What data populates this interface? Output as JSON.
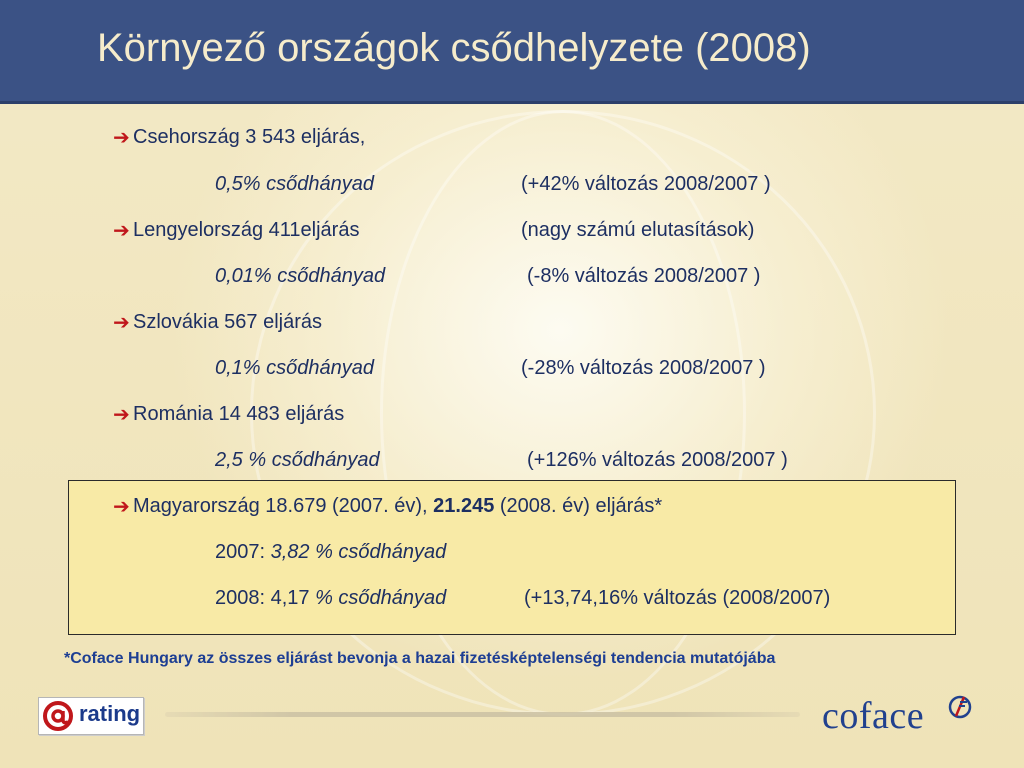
{
  "title": "Környező országok csődhelyzete (2008)",
  "items": [
    {
      "line1": "Csehország 3 543 eljárás,",
      "rate": "0,5% csődhányad",
      "change": "(+42% változás 2008/2007 )"
    },
    {
      "line1": "Lengyelország 411eljárás",
      "line1_note": "(nagy számú elutasítások)",
      "rate": "0,01% csődhányad",
      "change": "(-8% változás 2008/2007 )"
    },
    {
      "line1": "Szlovákia 567 eljárás",
      "rate": "0,1% csődhányad",
      "change": "(-28% változás 2008/2007 )"
    },
    {
      "line1": "Románia 14 483 eljárás",
      "rate": "2,5 % csődhányad",
      "change": "(+126% változás 2008/2007 )"
    }
  ],
  "hungary": {
    "line1_pre": "Magyarország 18.679 (2007. év), ",
    "line1_bold": "21.245",
    "line1_post": " (2008. év) eljárás*",
    "y2007_label": "2007: ",
    "y2007_rate": "3,82 % csődhányad",
    "y2008_label": "2008: 4,17 ",
    "y2008_rate": "% csődhányad",
    "y2008_change": "(+13,74,16% változás (2008/2007)"
  },
  "footnote": "*Coface Hungary az összes eljárást bevonja a hazai fizetésképtelenségi tendencia mutatójába",
  "logos": {
    "rating": "rating",
    "coface": "coface"
  },
  "icons": {
    "bullet": "red-arrow-icon"
  },
  "colors": {
    "header": "#3b5285",
    "title": "#f6eccb",
    "text": "#1d2f62",
    "bullet": "#c0171b",
    "highlight": "#f8eaa6",
    "footnote": "#1d3e93"
  }
}
